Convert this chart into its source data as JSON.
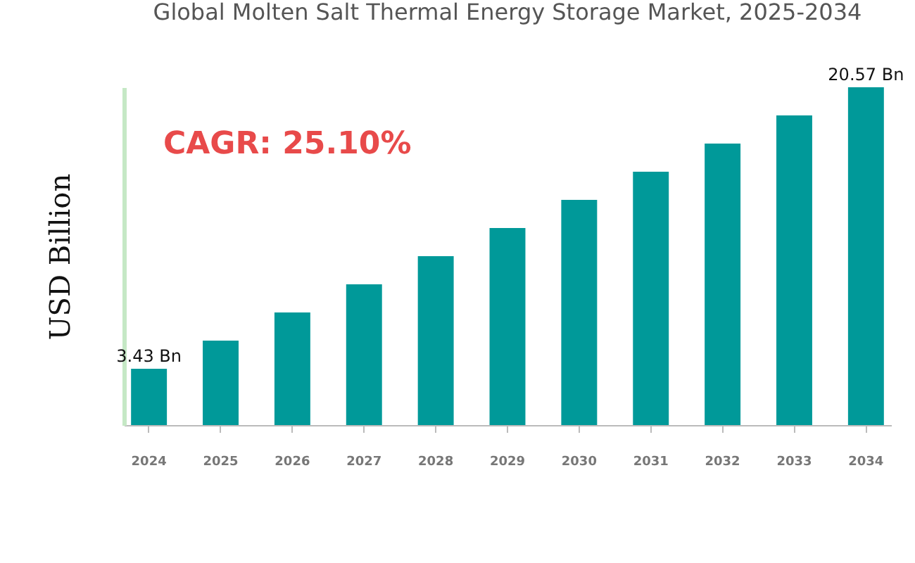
{
  "chart_data": {
    "type": "bar",
    "title": "Global Molten Salt Thermal Energy Storage Market, 2025-2034",
    "ylabel": "USD Billion",
    "categories": [
      "2024",
      "2025",
      "2026",
      "2027",
      "2028",
      "2029",
      "2030",
      "2031",
      "2032",
      "2033",
      "2034"
    ],
    "values": [
      3.43,
      5.14,
      6.86,
      8.57,
      10.29,
      12.0,
      13.71,
      15.43,
      17.14,
      18.86,
      20.57
    ],
    "value_labels": [
      "3.43 Bn",
      null,
      null,
      null,
      null,
      null,
      null,
      null,
      null,
      null,
      "20.57 Bn"
    ],
    "color": "#009999",
    "annotations": [
      "CAGR: 25.10%"
    ]
  }
}
